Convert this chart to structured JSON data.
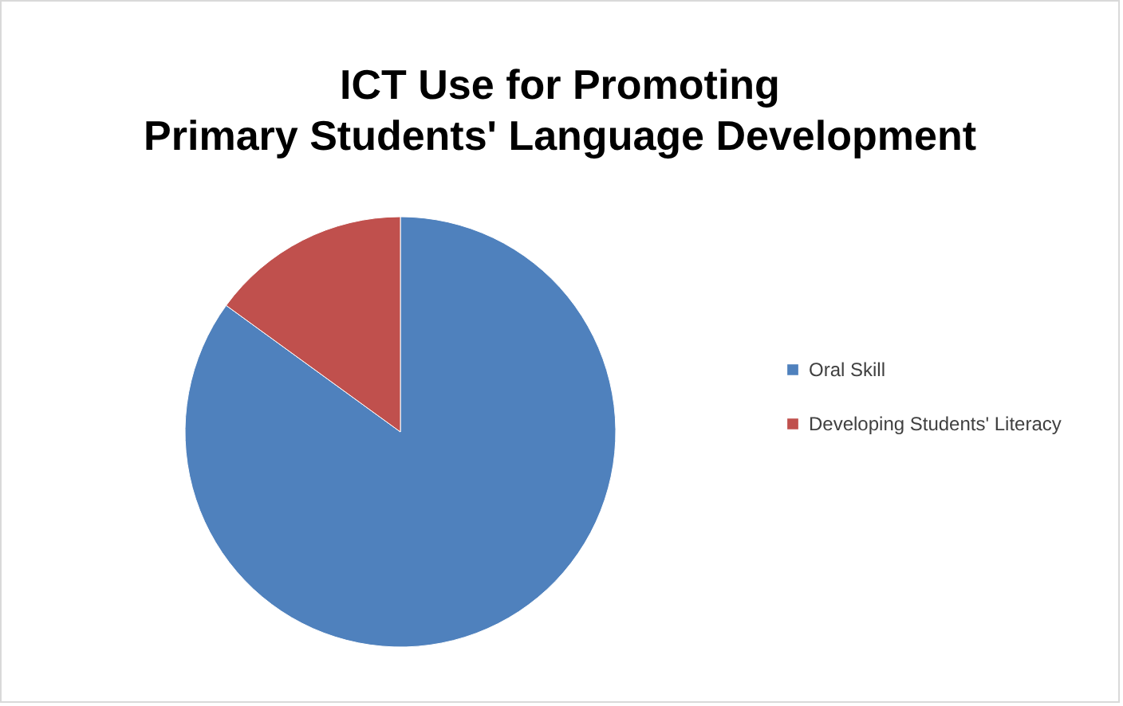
{
  "chart_data": {
    "type": "pie",
    "title": "ICT Use for Promoting Primary Students' Language Development",
    "categories": [
      "Oral Skill",
      "Developing Students' Literacy"
    ],
    "values": [
      85,
      15
    ],
    "colors": [
      "#4f81bd",
      "#c0504d"
    ],
    "legend": "right"
  }
}
